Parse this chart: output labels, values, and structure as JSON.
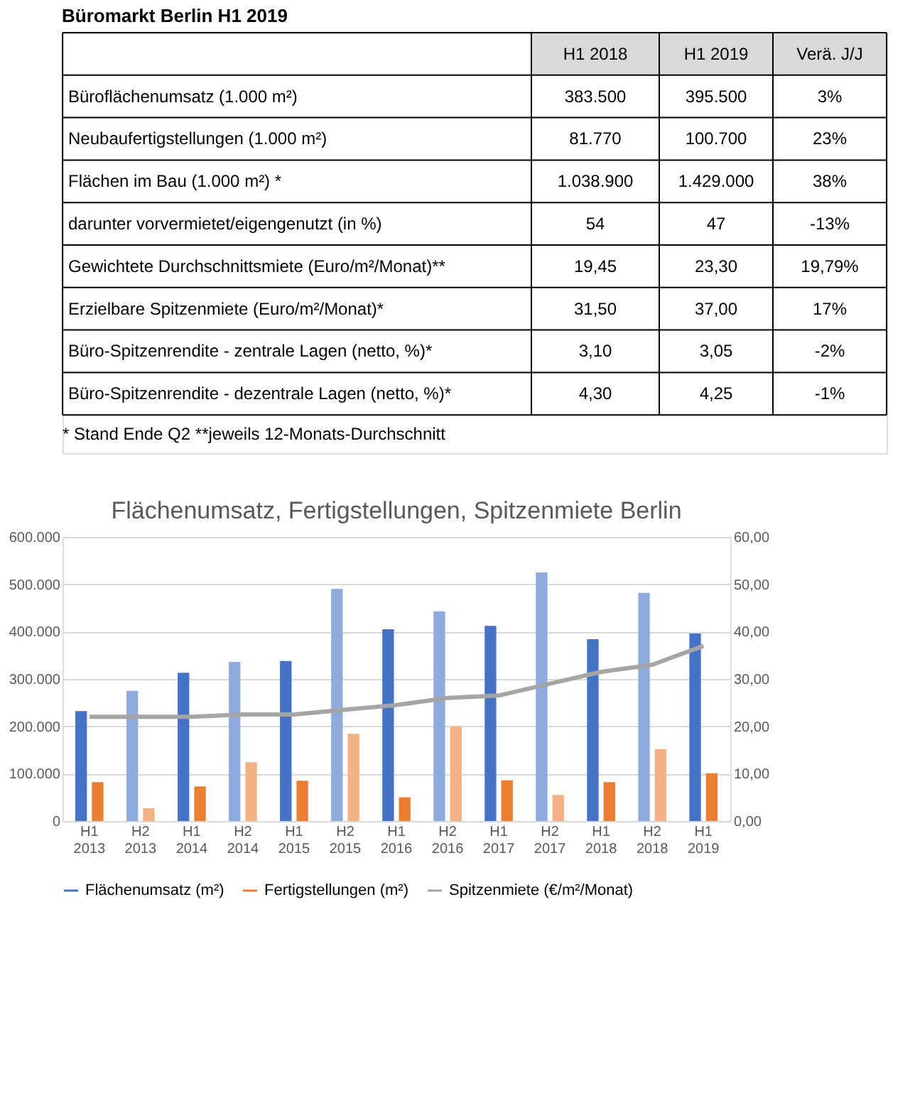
{
  "chart_data": [
    {
      "type": "other",
      "title": "Büromarkt Berlin H1 2019",
      "categories": [
        null,
        "H1 2018",
        "H1 2019",
        "Verä. J/J"
      ],
      "y_categories": [
        "Büroflächenumsatz (1.000 m²)",
        "Neubaufertigstellungen (1.000 m²)",
        "Flächen im Bau (1.000 m²) *",
        "  darunter vorvermietet/eigengenutzt (in %)",
        "Gewichtete Durchschnittsmiete (Euro/m²/Monat)**",
        "Erzielbare Spitzenmiete (Euro/m²/Monat)*",
        "Büro-Spitzenrendite - zentrale Lagen (netto, %)*",
        "Büro-Spitzenrendite - dezentrale Lagen (netto, %)*"
      ],
      "cell_labels": [
        [
          "383.500",
          "395.500",
          "3%"
        ],
        [
          "81.770",
          "100.700",
          "23%"
        ],
        [
          "1.038.900",
          "1.429.000",
          "38%"
        ],
        [
          "54",
          "47",
          "-13%"
        ],
        [
          "19,45",
          "23,30",
          "19,79%"
        ],
        [
          "31,50",
          "37,00",
          "17%"
        ],
        [
          "3,10",
          "3,05",
          "-2%"
        ],
        [
          "4,30",
          "4,25",
          "-1%"
        ]
      ],
      "annotations": [
        "* Stand Ende Q2 **jeweils 12-Monats-Durchschnitt"
      ]
    },
    {
      "type": "bar",
      "title": "Flächenumsatz, Fertigstellungen, Spitzenmiete Berlin",
      "categories": [
        "H1 2013",
        "H2 2013",
        "H1 2014",
        "H2 2014",
        "H1 2015",
        "H2 2015",
        "H1 2016",
        "H2 2016",
        "H1 2017",
        "H2 2017",
        "H1 2018",
        "H2 2018",
        "H1 2019"
      ],
      "series": [
        {
          "name": "Flächenumsatz (m²)",
          "color": "#4472c4",
          "colors": [
            "#4472c4",
            "#8faadc",
            "#4472c4",
            "#8faadc",
            "#4472c4",
            "#8faadc",
            "#4472c4",
            "#8faadc",
            "#4472c4",
            "#8faadc",
            "#4472c4",
            "#8faadc",
            "#4472c4"
          ],
          "values": [
            232000,
            275000,
            313000,
            336000,
            338000,
            490000,
            405000,
            443000,
            412000,
            525000,
            384000,
            482000,
            396000
          ]
        },
        {
          "name": "Fertigstellungen (m²)",
          "color": "#ed7d31",
          "colors": [
            "#ed7d31",
            "#f4b183",
            "#ed7d31",
            "#f4b183",
            "#ed7d31",
            "#f4b183",
            "#ed7d31",
            "#f4b183",
            "#ed7d31",
            "#f4b183",
            "#ed7d31",
            "#f4b183",
            "#ed7d31"
          ],
          "values": [
            82000,
            27000,
            73000,
            124000,
            85000,
            184000,
            50000,
            200000,
            86000,
            55000,
            82000,
            152000,
            101000
          ]
        },
        {
          "name": "Spitzenmiete (€/m²/Monat)",
          "type": "line",
          "axis": "y2",
          "color": "#a5a5a5",
          "values": [
            22.0,
            22.0,
            22.0,
            22.5,
            22.5,
            23.5,
            24.5,
            26.0,
            26.5,
            29.0,
            31.5,
            33.0,
            37.0
          ]
        }
      ],
      "ylim": [
        0,
        600000
      ],
      "yticks": [
        {
          "value": 0,
          "label": "0"
        },
        {
          "value": 100000,
          "label": "100.000"
        },
        {
          "value": 200000,
          "label": "200.000"
        },
        {
          "value": 300000,
          "label": "300.000"
        },
        {
          "value": 400000,
          "label": "400.000"
        },
        {
          "value": 500000,
          "label": "500.000"
        },
        {
          "value": 600000,
          "label": "600.000"
        }
      ],
      "y2lim": [
        0,
        60
      ],
      "y2ticks": [
        {
          "value": 0,
          "label": "0,00"
        },
        {
          "value": 10,
          "label": "10,00"
        },
        {
          "value": 20,
          "label": "20,00"
        },
        {
          "value": 30,
          "label": "30,00"
        },
        {
          "value": 40,
          "label": "40,00"
        },
        {
          "value": 50,
          "label": "50,00"
        },
        {
          "value": 60,
          "label": "60,00"
        }
      ],
      "grid": "y",
      "legend": "bottom",
      "marker": "none",
      "line_style": "solid"
    }
  ]
}
